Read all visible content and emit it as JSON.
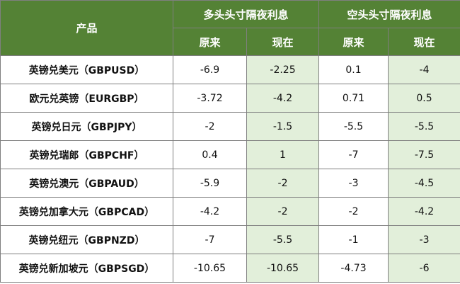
{
  "table": {
    "header": {
      "product": "产品",
      "long_group": "多头头寸隔夜利息",
      "short_group": "空头头寸隔夜利息",
      "original": "原来",
      "current": "现在"
    },
    "rows": [
      {
        "product": "英镑兑美元（GBPUSD）",
        "long_orig": "-6.9",
        "long_now": "-2.25",
        "short_orig": "0.1",
        "short_now": "-4"
      },
      {
        "product": "欧元兑英镑（EURGBP）",
        "long_orig": "-3.72",
        "long_now": "-4.2",
        "short_orig": "0.71",
        "short_now": "0.5"
      },
      {
        "product": "英镑兑日元（GBPJPY）",
        "long_orig": "-2",
        "long_now": "-1.5",
        "short_orig": "-5.5",
        "short_now": "-5.5"
      },
      {
        "product": "英镑兑瑞郎（GBPCHF）",
        "long_orig": "0.4",
        "long_now": "1",
        "short_orig": "-7",
        "short_now": "-7.5"
      },
      {
        "product": "英镑兑澳元（GBPAUD）",
        "long_orig": "-5.9",
        "long_now": "-2",
        "short_orig": "-3",
        "short_now": "-4.5"
      },
      {
        "product": "英镑兑加拿大元（GBPCAD）",
        "long_orig": "-4.2",
        "long_now": "-2",
        "short_orig": "-2",
        "short_now": "-4.2"
      },
      {
        "product": "英镑兑纽元（GBPNZD）",
        "long_orig": "-7",
        "long_now": "-5.5",
        "short_orig": "-1",
        "short_now": "-3"
      },
      {
        "product": "英镑兑新加坡元（GBPSGD）",
        "long_orig": "-10.65",
        "long_now": "-10.65",
        "short_orig": "-4.73",
        "short_now": "-6"
      }
    ],
    "colors": {
      "header_bg": "#548235",
      "header_text": "#ffffff",
      "current_cell_bg": "#e2efda",
      "border": "#7f7f7f"
    }
  }
}
